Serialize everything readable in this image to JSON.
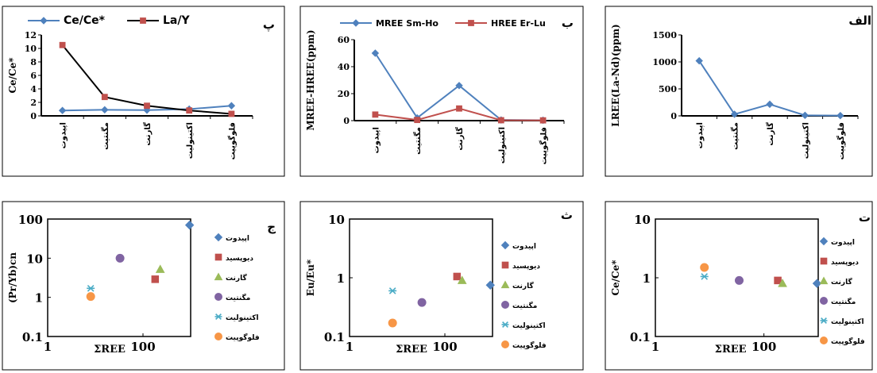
{
  "colors": {
    "blue": "#4F81BD",
    "red": "#C0504D",
    "black": "#000000",
    "green": "#9BBB59",
    "purple": "#8064A2",
    "cyan": "#4BACC6",
    "orange": "#F79646"
  },
  "chart_data": [
    {
      "panel": "الف",
      "type": "line",
      "categories": [
        "اپیدوت",
        "مگنتیت",
        "گارنت",
        "اکتینولیت",
        "فلوگوپیت"
      ],
      "series": [
        {
          "name": "",
          "color": "#4F81BD",
          "marker": "diamond",
          "values": [
            1020,
            30,
            215,
            10,
            5
          ]
        }
      ],
      "ylabel": "LREE(La-Nd)(ppm)",
      "ylim": [
        0,
        1500
      ],
      "yticks": [
        "0",
        "500",
        "1000",
        "1500"
      ]
    },
    {
      "panel": "ب",
      "type": "line",
      "categories": [
        "اپیدوت",
        "مگنتیت",
        "گارنت",
        "اکتینولیت",
        "فلوگوپیت"
      ],
      "series": [
        {
          "name": "MREE Sm-Ho",
          "color": "#4F81BD",
          "marker": "diamond",
          "values": [
            50,
            2,
            26,
            0.5,
            0.3
          ]
        },
        {
          "name": "HREE Er-Lu",
          "color": "#C0504D",
          "marker": "square",
          "values": [
            4.5,
            0.5,
            9,
            0.3,
            0.2
          ]
        }
      ],
      "ylabel": "MREE-HREE(ppm)",
      "ylim": [
        0,
        60
      ],
      "yticks": [
        "0",
        "20",
        "40",
        "60"
      ]
    },
    {
      "panel": "پ",
      "type": "line",
      "categories": [
        "اپیدوت",
        "مگنتیت",
        "گارنت",
        "اکتینولیت",
        "فلوگوپیت"
      ],
      "series": [
        {
          "name": "Ce/Ce*",
          "color": "#4F81BD",
          "marker": "diamond",
          "values": [
            0.8,
            0.9,
            0.85,
            1.0,
            1.5
          ]
        },
        {
          "name": "La/Y",
          "color": "#000000",
          "marker": "square",
          "markerColor": "#C0504D",
          "values": [
            10.5,
            2.8,
            1.5,
            0.8,
            0.3
          ]
        }
      ],
      "ylabel": "Ce/Ce*",
      "ylim": [
        0,
        12
      ],
      "yticks": [
        "0",
        "2",
        "4",
        "6",
        "8",
        "10",
        "12"
      ]
    },
    {
      "panel": "ت",
      "type": "scatter",
      "xlabel": "ΣREE",
      "ylabel": "Ce/Ce*",
      "xscale": "log",
      "yscale": "log",
      "xlim": [
        1,
        1000
      ],
      "ylim": [
        0.1,
        10
      ],
      "xticks": [
        "1",
        "100"
      ],
      "yticks": [
        "0.1",
        "1",
        "10"
      ],
      "series": [
        {
          "name": "اپیدوت",
          "color": "#4F81BD",
          "marker": "diamond",
          "points": [
            [
              950,
              0.8
            ]
          ]
        },
        {
          "name": "دیوپسید",
          "color": "#C0504D",
          "marker": "square",
          "points": [
            [
              180,
              0.9
            ]
          ]
        },
        {
          "name": "گارنت",
          "color": "#9BBB59",
          "marker": "triangle",
          "points": [
            [
              220,
              0.8
            ]
          ]
        },
        {
          "name": "مگنتیت",
          "color": "#8064A2",
          "marker": "circle",
          "points": [
            [
              35,
              0.9
            ]
          ]
        },
        {
          "name": "اکتینولیت",
          "color": "#4BACC6",
          "marker": "star",
          "points": [
            [
              8,
              1.05
            ]
          ]
        },
        {
          "name": "فلوگوپیت",
          "color": "#F79646",
          "marker": "circle",
          "points": [
            [
              8,
              1.5
            ]
          ]
        }
      ]
    },
    {
      "panel": "ث",
      "type": "scatter",
      "xlabel": "ΣREE",
      "ylabel": "Eu/Eu*",
      "xscale": "log",
      "yscale": "log",
      "xlim": [
        1,
        1000
      ],
      "ylim": [
        0.1,
        10
      ],
      "xticks": [
        "1",
        "100"
      ],
      "yticks": [
        "0.1",
        "1",
        "10"
      ],
      "series": [
        {
          "name": "اپیدوت",
          "color": "#4F81BD",
          "marker": "diamond",
          "points": [
            [
              900,
              0.75
            ]
          ]
        },
        {
          "name": "دیوپسید",
          "color": "#C0504D",
          "marker": "square",
          "points": [
            [
              180,
              1.05
            ]
          ]
        },
        {
          "name": "گارنت",
          "color": "#9BBB59",
          "marker": "triangle",
          "points": [
            [
              230,
              0.9
            ]
          ]
        },
        {
          "name": "مگنتیت",
          "color": "#8064A2",
          "marker": "circle",
          "points": [
            [
              33,
              0.38
            ]
          ]
        },
        {
          "name": "اکتینولیت",
          "color": "#4BACC6",
          "marker": "star",
          "points": [
            [
              8,
              0.6
            ]
          ]
        },
        {
          "name": "فلوگوپیت",
          "color": "#F79646",
          "marker": "circle",
          "points": [
            [
              8,
              0.17
            ]
          ]
        }
      ]
    },
    {
      "panel": "ج",
      "type": "scatter",
      "xlabel": "ΣREE",
      "ylabel": "(Pr/Yb)cn",
      "xscale": "log",
      "yscale": "log",
      "xlim": [
        1,
        1000
      ],
      "ylim": [
        0.1,
        100
      ],
      "xticks": [
        "1",
        "100"
      ],
      "yticks": [
        "0.1",
        "1",
        "10",
        "100"
      ],
      "series": [
        {
          "name": "اپیدوت",
          "color": "#4F81BD",
          "marker": "diamond",
          "points": [
            [
              950,
              70
            ]
          ]
        },
        {
          "name": "دیوپسید",
          "color": "#C0504D",
          "marker": "square",
          "points": [
            [
              180,
              2.9
            ]
          ]
        },
        {
          "name": "گارنت",
          "color": "#9BBB59",
          "marker": "triangle",
          "points": [
            [
              230,
              5.2
            ]
          ]
        },
        {
          "name": "مگنتیت",
          "color": "#8064A2",
          "marker": "circle",
          "points": [
            [
              33,
              10
            ]
          ]
        },
        {
          "name": "اکتینولیت",
          "color": "#4BACC6",
          "marker": "star",
          "points": [
            [
              8,
              1.7
            ]
          ]
        },
        {
          "name": "فلوگوپیت",
          "color": "#F79646",
          "marker": "circle",
          "points": [
            [
              8,
              1.05
            ]
          ]
        }
      ]
    }
  ]
}
